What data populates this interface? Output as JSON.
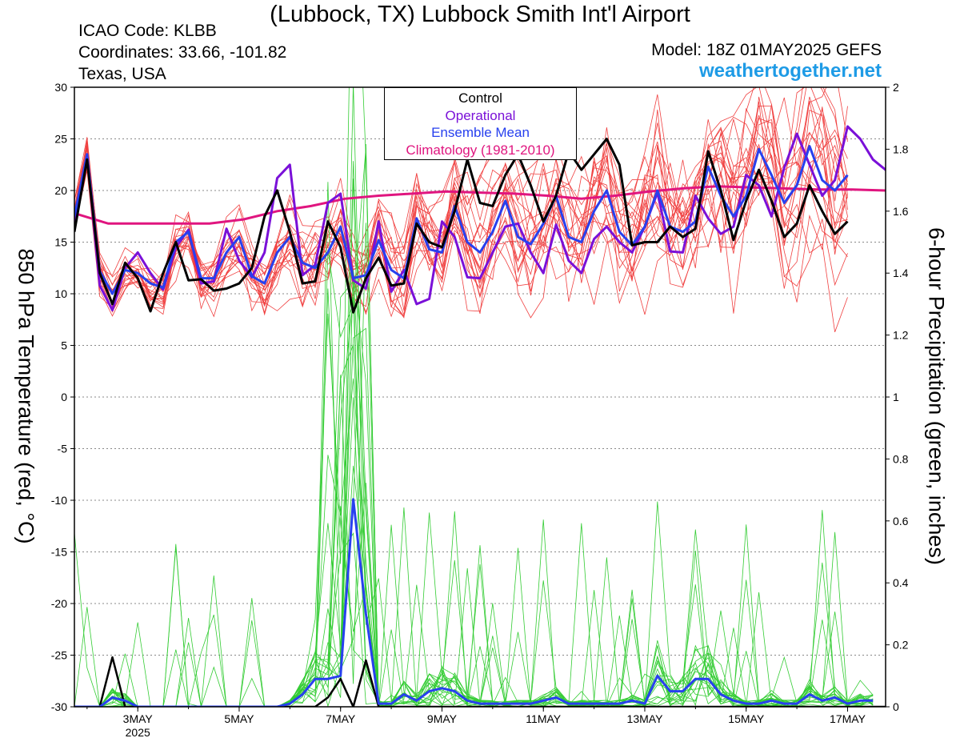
{
  "header": {
    "title": "(Lubbock, TX) Lubbock Smith Int'l Airport",
    "icao": "ICAO Code: KLBB",
    "coordinates": "Coordinates: 33.66, -101.82",
    "region": "Texas, USA",
    "model": "Model: 18Z 01MAY2025 GEFS",
    "site": "weathertogether.net"
  },
  "chart_data": {
    "type": "line",
    "ylabel_left": "850 hPa Temperature (red, °C)",
    "ylabel_right": "6-hour Precipitation (green, inches)",
    "ylim_left": [
      -30,
      30
    ],
    "ylim_right": [
      0,
      2
    ],
    "xlim": [
      "2025-05-01T18:00",
      "2025-05-17T18:00"
    ],
    "x_ticks": [
      "3MAY",
      "5MAY",
      "7MAY",
      "9MAY",
      "11MAY",
      "13MAY",
      "15MAY",
      "17MAY"
    ],
    "x_year_label": "2025",
    "left_ticks": [
      "30",
      "25",
      "20",
      "15",
      "10",
      "5",
      "0",
      "-5",
      "-10",
      "-15",
      "-20",
      "-25",
      "-30"
    ],
    "right_ticks": [
      "2",
      "1.8",
      "1.6",
      "1.4",
      "1.2",
      "1",
      "0.8",
      "0.6",
      "0.4",
      "0.2",
      "0"
    ],
    "grid": true,
    "time_step_hours": 6,
    "legend": {
      "placement": "top-center",
      "entries": [
        {
          "label": "Control",
          "color": "#000000"
        },
        {
          "label": "Operational",
          "color": "#7a10d8"
        },
        {
          "label": "Ensemble Mean",
          "color": "#2740ee"
        },
        {
          "label": "Climatology (1981-2010)",
          "color": "#e0157f"
        }
      ]
    },
    "colors": {
      "members_temp": "#f04040",
      "members_precip": "#33cc33",
      "control": "#000000",
      "operational": "#7a10d8",
      "mean": "#2740ee",
      "climatology": "#e0157f"
    },
    "series": [
      {
        "name": "Control",
        "values": [
          16,
          23,
          12,
          9,
          13,
          11.5,
          8.3,
          12,
          15,
          11.3,
          11.4,
          10.3,
          10.5,
          11,
          12.5,
          17.5,
          20,
          16,
          11,
          11.2,
          17,
          14.5,
          8.2,
          11.5,
          13.5,
          10.8,
          11,
          16.8,
          15,
          14.5,
          18,
          23,
          18.8,
          18.5,
          21.5,
          23.5,
          20.5,
          17,
          19.5,
          23.8,
          22,
          23.5,
          25,
          22.5,
          14.7,
          15,
          15,
          16.5,
          15.5,
          16.3,
          23.8,
          20,
          15.2,
          19,
          22,
          19,
          15.5,
          16.8,
          20.5,
          18,
          15.8,
          17
        ]
      },
      {
        "name": "Operational",
        "values": [
          17,
          23.5,
          10.8,
          8.4,
          12.5,
          14,
          12,
          10.4,
          14.5,
          16.2,
          11,
          11.2,
          16.3,
          13.2,
          11.6,
          14,
          21.2,
          22.5,
          11.8,
          12.8,
          18.8,
          19.7,
          11.3,
          10.5,
          17,
          10.2,
          12.3,
          9,
          9.5,
          17,
          15.5,
          11.6,
          11.5,
          14,
          16.5,
          16.8,
          14,
          12,
          16.7,
          13.2,
          12,
          15.3,
          16.5,
          15,
          14,
          16.5,
          19.8,
          14.1,
          14,
          19.5,
          17.3,
          15.8,
          16.5,
          21.5,
          20.5,
          17.5,
          22.2,
          25.5,
          22.5,
          19.5,
          21,
          26.2,
          25,
          23,
          22,
          22.5
        ]
      },
      {
        "name": "Ensemble Mean",
        "values": [
          17.5,
          23.5,
          12.2,
          10,
          12.3,
          12,
          11,
          10.6,
          15,
          16,
          11.5,
          11.5,
          14,
          15.5,
          11.7,
          11,
          14,
          15.5,
          13,
          12.5,
          14,
          16.5,
          11.5,
          11.8,
          15.2,
          12.3,
          11.5,
          17.3,
          14.3,
          14,
          18.5,
          15,
          14,
          16,
          19,
          15.5,
          14.8,
          16.8,
          19.5,
          15.5,
          15,
          18,
          20,
          16,
          14.7,
          16.5,
          20,
          16.5,
          16,
          17,
          22.3,
          19.5,
          17.5,
          19.5,
          24,
          21.5,
          18.8,
          20.5,
          24.3,
          21,
          20,
          21.5
        ]
      },
      {
        "name": "Climatology (1981-2010)",
        "values": [
          17.8,
          16.8,
          16.8,
          16.8,
          16.8,
          17.2,
          18,
          18.5,
          19.2,
          19.5,
          19.7,
          19.9,
          19.8,
          19.7,
          19.5,
          19.2,
          19.5,
          19.9,
          20.2,
          20.4,
          20.3,
          20.2,
          20.1,
          20.1,
          20.0
        ]
      }
    ],
    "precip_series": [
      {
        "name": "Control",
        "values": [
          0,
          0,
          0,
          0.16,
          0,
          0,
          0,
          0,
          0,
          0,
          0,
          0,
          0,
          0,
          0,
          0,
          0,
          0,
          0,
          0,
          0.03,
          0.09,
          0,
          0.15,
          0,
          0,
          0,
          0,
          0,
          0,
          0,
          0,
          0,
          0,
          0,
          0,
          0,
          0,
          0,
          0,
          0,
          0,
          0,
          0,
          0,
          0,
          0,
          0,
          0,
          0,
          0,
          0,
          0,
          0,
          0,
          0,
          0,
          0,
          0,
          0,
          0,
          0,
          0,
          0,
          0,
          0,
          0,
          0.15,
          0,
          0,
          0
        ]
      },
      {
        "name": "Ensemble Mean",
        "values": [
          0,
          0,
          0,
          0.03,
          0.02,
          0,
          0,
          0,
          0,
          0,
          0,
          0,
          0,
          0,
          0,
          0,
          0,
          0.01,
          0.04,
          0.09,
          0.09,
          0.1,
          0.67,
          0.3,
          0.01,
          0.01,
          0.04,
          0.02,
          0.05,
          0.06,
          0.05,
          0.02,
          0.01,
          0.01,
          0.01,
          0.01,
          0.01,
          0.02,
          0.03,
          0.01,
          0.01,
          0.01,
          0.01,
          0.01,
          0.02,
          0.01,
          0.1,
          0.05,
          0.05,
          0.09,
          0.09,
          0.04,
          0.02,
          0.01,
          0.01,
          0.02,
          0.01,
          0.01,
          0.04,
          0.02,
          0.03,
          0.01,
          0.02,
          0.02
        ]
      }
    ]
  }
}
